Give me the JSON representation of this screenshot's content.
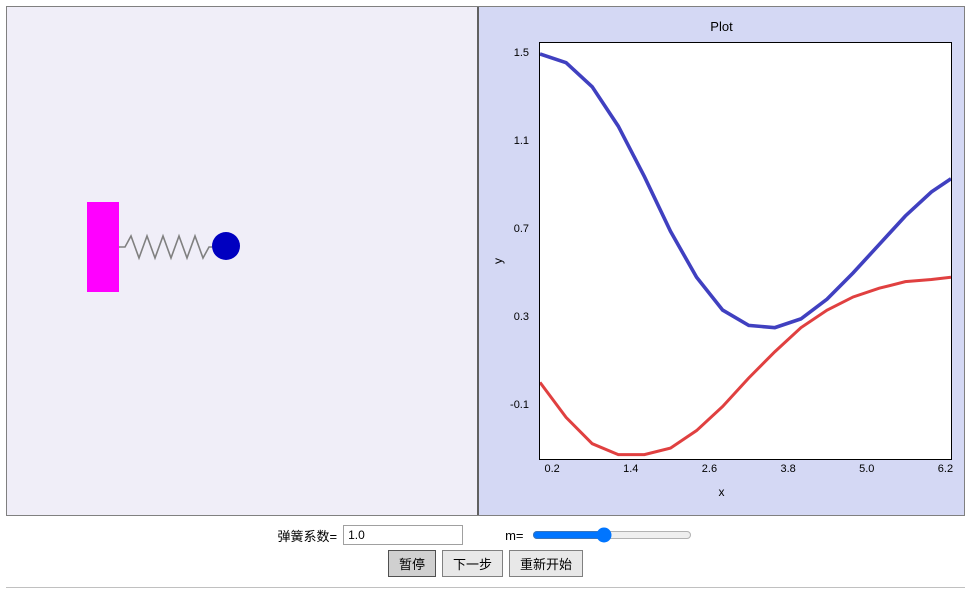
{
  "sim": {
    "wall_color": "#ff00ff",
    "spring_color": "#808080",
    "mass_color": "#0000c0",
    "panel_bg": "#f0eef8"
  },
  "plot": {
    "title": "Plot",
    "xlabel": "x",
    "ylabel": "y",
    "panel_bg": "#d4d8f4",
    "plot_bg": "#ffffff",
    "border_color": "#000000",
    "xlim": [
      0.0,
      6.3
    ],
    "ylim": [
      -0.35,
      1.55
    ],
    "xticks": [
      0.2,
      1.4,
      2.6,
      3.8,
      5.0,
      6.2
    ],
    "yticks": [
      -0.1,
      0.3,
      0.7,
      1.1,
      1.5
    ],
    "tick_fontsize": 11,
    "label_fontsize": 12,
    "title_fontsize": 13,
    "series": [
      {
        "name": "blue-curve",
        "color": "#4040c0",
        "line_width": 1.2,
        "x": [
          0.0,
          0.4,
          0.8,
          1.2,
          1.6,
          2.0,
          2.4,
          2.8,
          3.2,
          3.6,
          4.0,
          4.4,
          4.8,
          5.2,
          5.6,
          6.0,
          6.3
        ],
        "y": [
          1.5,
          1.46,
          1.35,
          1.17,
          0.94,
          0.69,
          0.48,
          0.33,
          0.26,
          0.25,
          0.29,
          0.38,
          0.5,
          0.63,
          0.76,
          0.87,
          0.93
        ]
      },
      {
        "name": "red-curve",
        "color": "#e04040",
        "line_width": 1.0,
        "x": [
          0.0,
          0.4,
          0.8,
          1.2,
          1.6,
          2.0,
          2.4,
          2.8,
          3.2,
          3.6,
          4.0,
          4.4,
          4.8,
          5.2,
          5.6,
          6.0,
          6.3
        ],
        "y": [
          0.0,
          -0.16,
          -0.28,
          -0.33,
          -0.33,
          -0.3,
          -0.22,
          -0.11,
          0.02,
          0.14,
          0.25,
          0.33,
          0.39,
          0.43,
          0.46,
          0.47,
          0.48
        ]
      }
    ]
  },
  "controls": {
    "spring_const_label": "弹簧系数=",
    "spring_const_value": "1.0",
    "mass_label": "m=",
    "mass_slider_min": 0,
    "mass_slider_max": 100,
    "mass_slider_value": 45,
    "buttons": {
      "pause": "暂停",
      "step": "下一步",
      "restart": "重新开始"
    }
  }
}
